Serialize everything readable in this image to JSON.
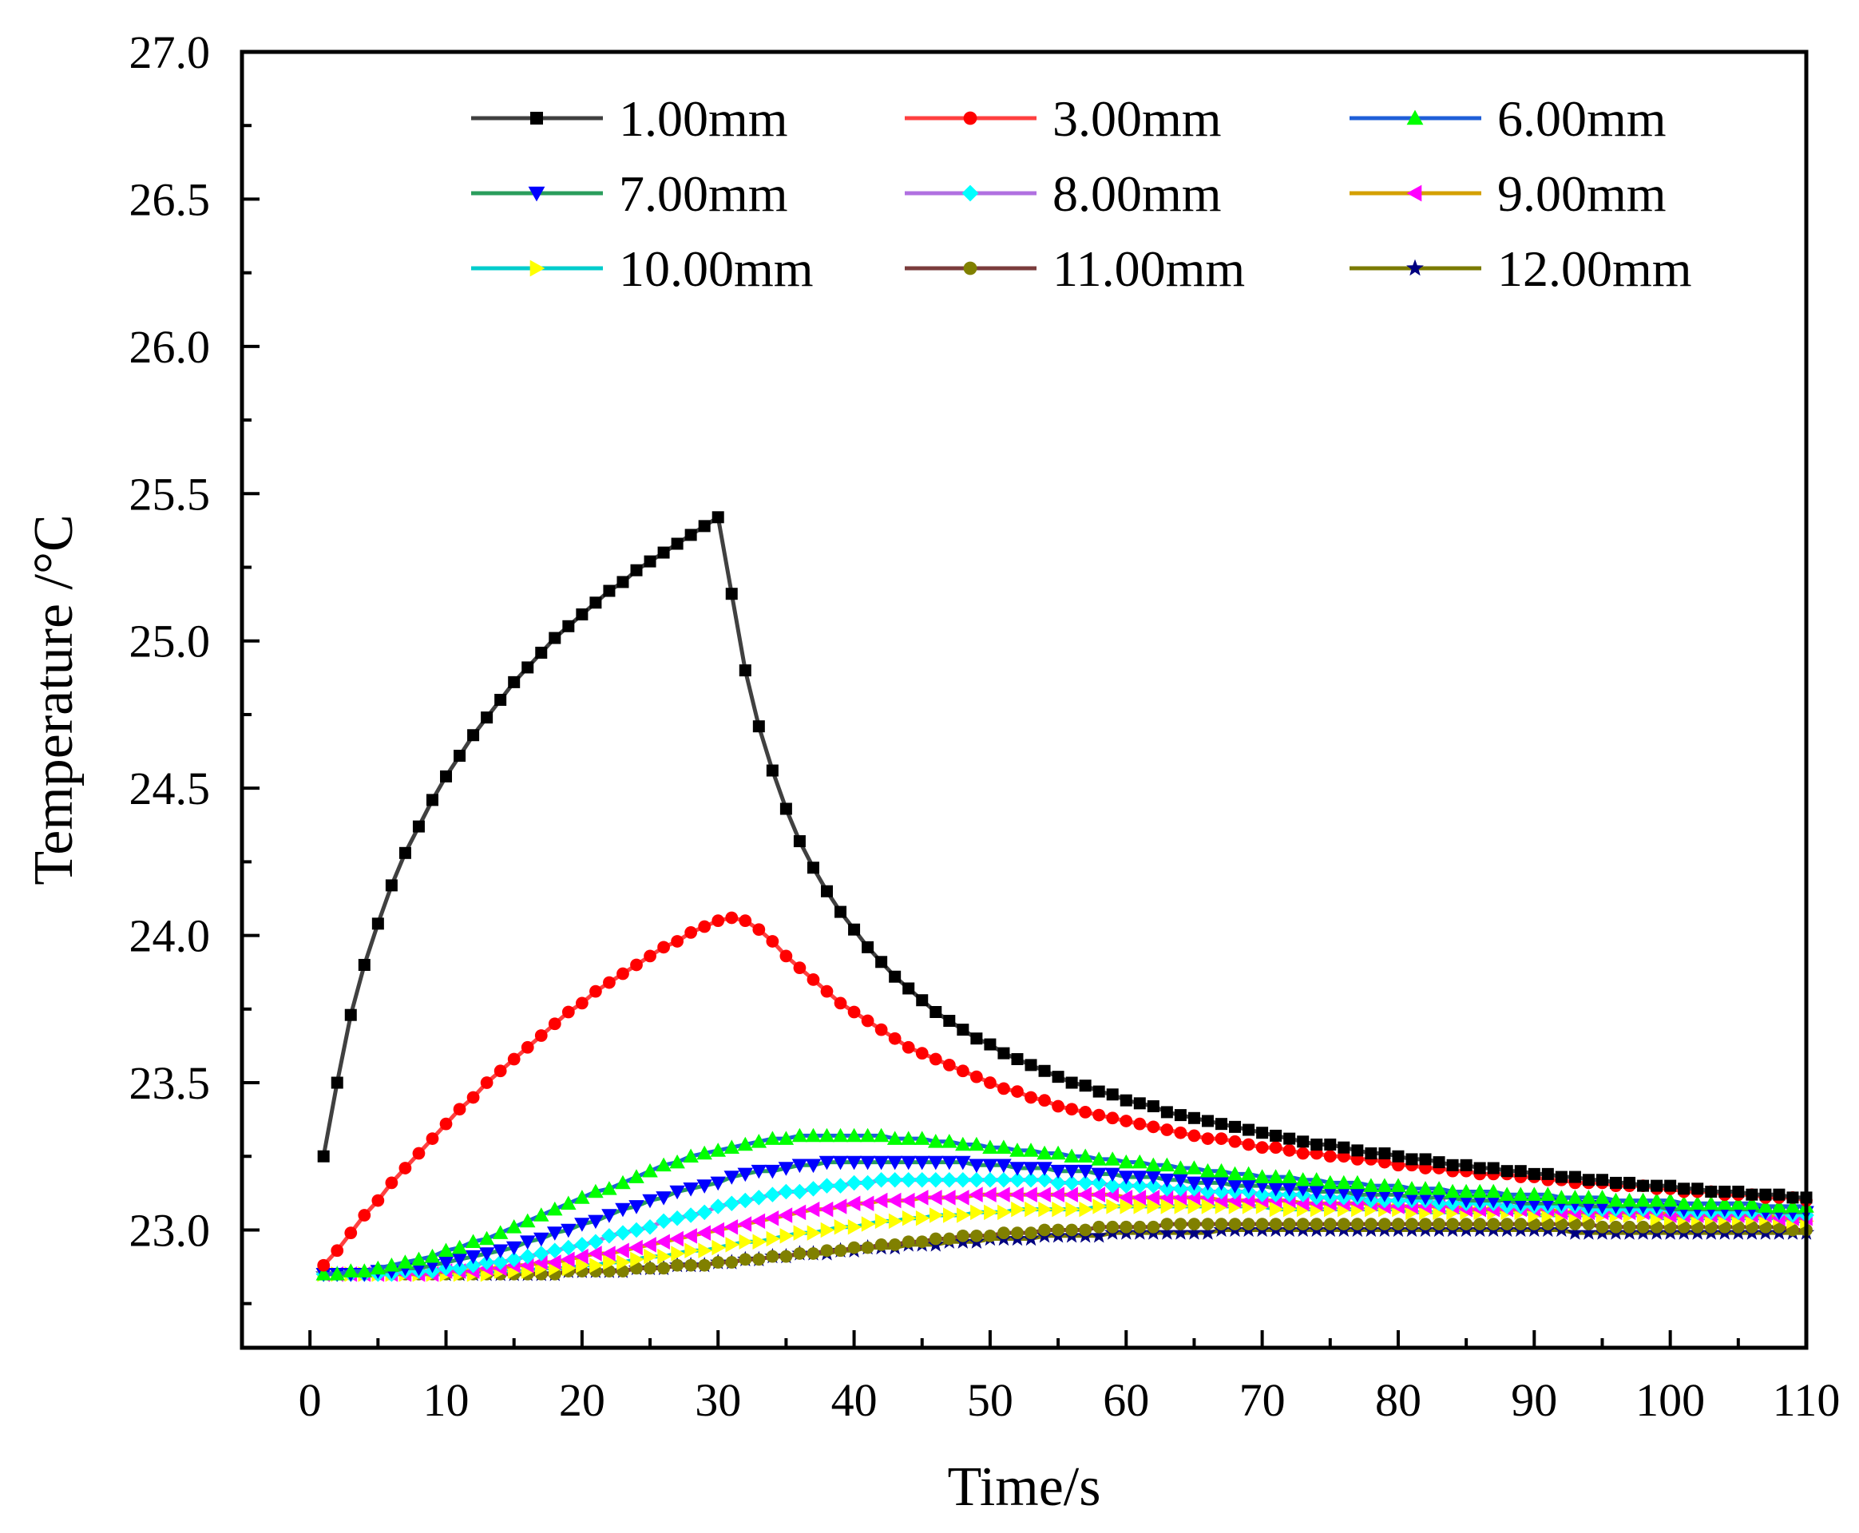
{
  "chart_data": {
    "type": "line",
    "title": "",
    "xlabel": "Time/s",
    "ylabel": "Temperature /°C",
    "xlim": [
      -5,
      110
    ],
    "ylim": [
      22.6,
      27.0
    ],
    "xticks": [
      "0",
      "10",
      "20",
      "30",
      "40",
      "50",
      "60",
      "70",
      "80",
      "90",
      "100",
      "110"
    ],
    "yticks": [
      "23.0",
      "23.5",
      "24.0",
      "24.5",
      "25.0",
      "25.5",
      "26.0",
      "26.5",
      "27.0"
    ],
    "x": [
      1,
      2,
      3,
      4,
      5,
      6,
      7,
      8,
      9,
      10,
      11,
      12,
      13,
      14,
      15,
      16,
      17,
      18,
      19,
      20,
      21,
      22,
      23,
      24,
      25,
      26,
      27,
      28,
      29,
      30,
      31,
      32,
      33,
      34,
      35,
      36,
      37,
      38,
      39,
      40,
      41,
      42,
      43,
      44,
      45,
      46,
      47,
      48,
      49,
      50,
      51,
      52,
      53,
      54,
      55,
      56,
      57,
      58,
      59,
      60,
      61,
      62,
      63,
      64,
      65,
      66,
      67,
      68,
      69,
      70,
      71,
      72,
      73,
      74,
      75,
      76,
      77,
      78,
      79,
      80,
      81,
      82,
      83,
      84,
      85,
      86,
      87,
      88,
      89,
      90,
      91,
      92,
      93,
      94,
      95,
      96,
      97,
      98,
      99,
      100,
      101,
      102,
      103,
      104,
      105,
      106,
      107,
      108,
      109,
      110
    ],
    "legend_position": "top",
    "series": [
      {
        "name": "1.00mm",
        "color": "#404040",
        "marker": "square",
        "marker_color": "#000000",
        "values": [
          23.25,
          23.5,
          23.73,
          23.9,
          24.04,
          24.17,
          24.28,
          24.37,
          24.46,
          24.54,
          24.61,
          24.68,
          24.74,
          24.8,
          24.86,
          24.91,
          24.96,
          25.01,
          25.05,
          25.09,
          25.13,
          25.17,
          25.2,
          25.24,
          25.27,
          25.3,
          25.33,
          25.36,
          25.39,
          25.42,
          25.16,
          24.9,
          24.71,
          24.56,
          24.43,
          24.32,
          24.23,
          24.15,
          24.08,
          24.02,
          23.96,
          23.91,
          23.86,
          23.82,
          23.78,
          23.74,
          23.71,
          23.68,
          23.65,
          23.63,
          23.6,
          23.58,
          23.56,
          23.54,
          23.52,
          23.5,
          23.49,
          23.47,
          23.46,
          23.44,
          23.43,
          23.42,
          23.4,
          23.39,
          23.38,
          23.37,
          23.36,
          23.35,
          23.34,
          23.33,
          23.32,
          23.31,
          23.3,
          23.29,
          23.29,
          23.28,
          23.27,
          23.26,
          23.26,
          23.25,
          23.24,
          23.24,
          23.23,
          23.22,
          23.22,
          23.21,
          23.21,
          23.2,
          23.2,
          23.19,
          23.19,
          23.18,
          23.18,
          23.17,
          23.17,
          23.16,
          23.16,
          23.15,
          23.15,
          23.15,
          23.14,
          23.14,
          23.13,
          23.13,
          23.13,
          23.12,
          23.12,
          23.12,
          23.11,
          23.11
        ]
      },
      {
        "name": "3.00mm",
        "color": "#ff4040",
        "marker": "circle",
        "marker_color": "#ff0000",
        "values": [
          22.88,
          22.93,
          22.99,
          23.05,
          23.1,
          23.16,
          23.21,
          23.26,
          23.31,
          23.36,
          23.41,
          23.45,
          23.5,
          23.54,
          23.58,
          23.62,
          23.66,
          23.7,
          23.74,
          23.77,
          23.81,
          23.84,
          23.87,
          23.9,
          23.93,
          23.96,
          23.98,
          24.01,
          24.03,
          24.05,
          24.06,
          24.05,
          24.02,
          23.98,
          23.93,
          23.89,
          23.85,
          23.81,
          23.77,
          23.74,
          23.71,
          23.68,
          23.65,
          23.62,
          23.6,
          23.58,
          23.56,
          23.54,
          23.52,
          23.5,
          23.48,
          23.47,
          23.45,
          23.44,
          23.42,
          23.41,
          23.4,
          23.39,
          23.38,
          23.37,
          23.36,
          23.35,
          23.34,
          23.33,
          23.32,
          23.31,
          23.31,
          23.3,
          23.29,
          23.28,
          23.28,
          23.27,
          23.26,
          23.26,
          23.25,
          23.25,
          23.24,
          23.24,
          23.23,
          23.22,
          23.22,
          23.21,
          23.21,
          23.2,
          23.2,
          23.19,
          23.19,
          23.19,
          23.18,
          23.18,
          23.17,
          23.17,
          23.16,
          23.16,
          23.16,
          23.15,
          23.15,
          23.15,
          23.14,
          23.14,
          23.13,
          23.13,
          23.13,
          23.12,
          23.12,
          23.12,
          23.11,
          23.11,
          23.11,
          23.1
        ]
      },
      {
        "name": "6.00mm",
        "color": "#1f5fd8",
        "marker": "triangle-up",
        "marker_color": "#00ff00",
        "values": [
          22.85,
          22.85,
          22.86,
          22.86,
          22.87,
          22.88,
          22.89,
          22.9,
          22.91,
          22.93,
          22.94,
          22.96,
          22.97,
          22.99,
          23.01,
          23.03,
          23.05,
          23.07,
          23.09,
          23.11,
          23.13,
          23.14,
          23.16,
          23.18,
          23.2,
          23.22,
          23.23,
          23.25,
          23.26,
          23.27,
          23.28,
          23.29,
          23.3,
          23.31,
          23.31,
          23.32,
          23.32,
          23.32,
          23.32,
          23.32,
          23.32,
          23.32,
          23.31,
          23.31,
          23.31,
          23.3,
          23.3,
          23.29,
          23.29,
          23.28,
          23.28,
          23.27,
          23.27,
          23.26,
          23.26,
          23.25,
          23.25,
          23.24,
          23.24,
          23.23,
          23.23,
          23.22,
          23.22,
          23.21,
          23.21,
          23.2,
          23.2,
          23.19,
          23.19,
          23.18,
          23.18,
          23.18,
          23.17,
          23.17,
          23.16,
          23.16,
          23.16,
          23.15,
          23.15,
          23.15,
          23.14,
          23.14,
          23.14,
          23.13,
          23.13,
          23.13,
          23.13,
          23.12,
          23.12,
          23.12,
          23.12,
          23.11,
          23.11,
          23.11,
          23.11,
          23.1,
          23.1,
          23.1,
          23.1,
          23.1,
          23.09,
          23.09,
          23.09,
          23.09,
          23.09,
          23.09,
          23.08,
          23.08,
          23.08,
          23.08
        ]
      },
      {
        "name": "7.00mm",
        "color": "#2a9d5c",
        "marker": "triangle-down",
        "marker_color": "#0000ff",
        "values": [
          22.85,
          22.85,
          22.85,
          22.85,
          22.86,
          22.86,
          22.87,
          22.87,
          22.88,
          22.89,
          22.9,
          22.91,
          22.92,
          22.93,
          22.94,
          22.96,
          22.97,
          22.99,
          23.0,
          23.02,
          23.03,
          23.05,
          23.07,
          23.08,
          23.1,
          23.11,
          23.13,
          23.14,
          23.15,
          23.16,
          23.18,
          23.19,
          23.2,
          23.2,
          23.21,
          23.22,
          23.22,
          23.23,
          23.23,
          23.23,
          23.23,
          23.23,
          23.23,
          23.23,
          23.23,
          23.23,
          23.23,
          23.23,
          23.22,
          23.22,
          23.22,
          23.21,
          23.21,
          23.21,
          23.2,
          23.2,
          23.2,
          23.19,
          23.19,
          23.18,
          23.18,
          23.18,
          23.17,
          23.17,
          23.16,
          23.16,
          23.16,
          23.15,
          23.15,
          23.15,
          23.14,
          23.14,
          23.14,
          23.13,
          23.13,
          23.13,
          23.12,
          23.12,
          23.12,
          23.12,
          23.11,
          23.11,
          23.11,
          23.11,
          23.1,
          23.1,
          23.1,
          23.1,
          23.09,
          23.09,
          23.09,
          23.09,
          23.09,
          23.08,
          23.08,
          23.08,
          23.08,
          23.08,
          23.08,
          23.07,
          23.07,
          23.07,
          23.07,
          23.07,
          23.07,
          23.07,
          23.06,
          23.06,
          23.06,
          23.06
        ]
      },
      {
        "name": "8.00mm",
        "color": "#b070e0",
        "marker": "diamond",
        "marker_color": "#00ffff",
        "values": [
          22.85,
          22.85,
          22.85,
          22.85,
          22.85,
          22.85,
          22.86,
          22.86,
          22.86,
          22.87,
          22.87,
          22.88,
          22.89,
          22.89,
          22.9,
          22.91,
          22.92,
          22.93,
          22.94,
          22.95,
          22.96,
          22.98,
          22.99,
          23.0,
          23.01,
          23.03,
          23.04,
          23.05,
          23.06,
          23.08,
          23.09,
          23.1,
          23.11,
          23.12,
          23.13,
          23.13,
          23.14,
          23.15,
          23.15,
          23.16,
          23.16,
          23.17,
          23.17,
          23.17,
          23.17,
          23.17,
          23.17,
          23.17,
          23.17,
          23.17,
          23.17,
          23.17,
          23.17,
          23.17,
          23.16,
          23.16,
          23.16,
          23.16,
          23.15,
          23.15,
          23.15,
          23.15,
          23.14,
          23.14,
          23.14,
          23.13,
          23.13,
          23.13,
          23.13,
          23.12,
          23.12,
          23.12,
          23.12,
          23.11,
          23.11,
          23.11,
          23.11,
          23.1,
          23.1,
          23.1,
          23.1,
          23.1,
          23.09,
          23.09,
          23.09,
          23.09,
          23.09,
          23.08,
          23.08,
          23.08,
          23.08,
          23.08,
          23.08,
          23.07,
          23.07,
          23.07,
          23.07,
          23.07,
          23.07,
          23.07,
          23.06,
          23.06,
          23.06,
          23.06,
          23.06,
          23.06,
          23.06,
          23.06,
          23.05,
          23.05
        ]
      },
      {
        "name": "9.00mm",
        "color": "#d4a000",
        "marker": "triangle-left",
        "marker_color": "#ff00ff",
        "values": [
          22.85,
          22.85,
          22.85,
          22.85,
          22.85,
          22.85,
          22.85,
          22.85,
          22.85,
          22.86,
          22.86,
          22.86,
          22.87,
          22.87,
          22.88,
          22.88,
          22.89,
          22.89,
          22.9,
          22.91,
          22.92,
          22.92,
          22.93,
          22.94,
          22.95,
          22.96,
          22.97,
          22.98,
          22.99,
          23.0,
          23.01,
          23.02,
          23.03,
          23.04,
          23.05,
          23.06,
          23.07,
          23.07,
          23.08,
          23.09,
          23.09,
          23.1,
          23.1,
          23.1,
          23.11,
          23.11,
          23.11,
          23.11,
          23.12,
          23.12,
          23.12,
          23.12,
          23.12,
          23.12,
          23.12,
          23.12,
          23.12,
          23.12,
          23.12,
          23.11,
          23.11,
          23.11,
          23.11,
          23.11,
          23.11,
          23.11,
          23.1,
          23.1,
          23.1,
          23.1,
          23.1,
          23.1,
          23.09,
          23.09,
          23.09,
          23.09,
          23.09,
          23.09,
          23.08,
          23.08,
          23.08,
          23.08,
          23.08,
          23.08,
          23.07,
          23.07,
          23.07,
          23.07,
          23.07,
          23.07,
          23.07,
          23.06,
          23.06,
          23.06,
          23.06,
          23.06,
          23.06,
          23.06,
          23.06,
          23.05,
          23.05,
          23.05,
          23.05,
          23.05,
          23.05,
          23.05,
          23.05,
          23.04,
          23.04,
          23.04
        ]
      },
      {
        "name": "10.00mm",
        "color": "#00cccc",
        "marker": "triangle-right",
        "marker_color": "#ffff00",
        "values": [
          22.85,
          22.85,
          22.85,
          22.85,
          22.85,
          22.85,
          22.85,
          22.85,
          22.85,
          22.85,
          22.85,
          22.85,
          22.85,
          22.86,
          22.86,
          22.86,
          22.87,
          22.87,
          22.87,
          22.88,
          22.88,
          22.89,
          22.89,
          22.9,
          22.91,
          22.91,
          22.92,
          22.93,
          22.93,
          22.94,
          22.95,
          22.96,
          22.96,
          22.97,
          22.98,
          22.99,
          22.99,
          23.0,
          23.01,
          23.01,
          23.02,
          23.03,
          23.03,
          23.04,
          23.04,
          23.05,
          23.05,
          23.05,
          23.06,
          23.06,
          23.06,
          23.07,
          23.07,
          23.07,
          23.07,
          23.07,
          23.07,
          23.08,
          23.08,
          23.08,
          23.08,
          23.08,
          23.08,
          23.08,
          23.08,
          23.08,
          23.08,
          23.08,
          23.08,
          23.08,
          23.07,
          23.07,
          23.07,
          23.07,
          23.07,
          23.07,
          23.07,
          23.07,
          23.07,
          23.07,
          23.06,
          23.06,
          23.06,
          23.06,
          23.06,
          23.06,
          23.06,
          23.06,
          23.06,
          23.05,
          23.05,
          23.05,
          23.05,
          23.05,
          23.05,
          23.05,
          23.05,
          23.05,
          23.04,
          23.04,
          23.04,
          23.04,
          23.04,
          23.04,
          23.04,
          23.04,
          23.04,
          23.04,
          23.03,
          23.03
        ]
      },
      {
        "name": "11.00mm",
        "color": "#7a3c3c",
        "marker": "circle",
        "marker_color": "#808000",
        "values": [
          22.85,
          22.85,
          22.85,
          22.85,
          22.85,
          22.85,
          22.85,
          22.85,
          22.85,
          22.85,
          22.85,
          22.85,
          22.85,
          22.85,
          22.85,
          22.85,
          22.85,
          22.85,
          22.86,
          22.86,
          22.86,
          22.86,
          22.86,
          22.87,
          22.87,
          22.87,
          22.88,
          22.88,
          22.88,
          22.89,
          22.89,
          22.9,
          22.9,
          22.91,
          22.91,
          22.92,
          22.92,
          22.93,
          22.93,
          22.94,
          22.94,
          22.95,
          22.95,
          22.96,
          22.96,
          22.97,
          22.97,
          22.98,
          22.98,
          22.98,
          22.99,
          22.99,
          22.99,
          23.0,
          23.0,
          23.0,
          23.0,
          23.01,
          23.01,
          23.01,
          23.01,
          23.01,
          23.02,
          23.02,
          23.02,
          23.02,
          23.02,
          23.02,
          23.02,
          23.02,
          23.02,
          23.02,
          23.02,
          23.02,
          23.02,
          23.02,
          23.02,
          23.02,
          23.02,
          23.02,
          23.02,
          23.02,
          23.02,
          23.02,
          23.02,
          23.02,
          23.02,
          23.02,
          23.02,
          23.02,
          23.02,
          23.02,
          23.02,
          23.02,
          23.01,
          23.01,
          23.01,
          23.01,
          23.01,
          23.01,
          23.01,
          23.01,
          23.01,
          23.01,
          23.01,
          23.01,
          23.01,
          23.01,
          23.0,
          23.0
        ]
      },
      {
        "name": "12.00mm",
        "color": "#7a7a00",
        "marker": "star",
        "marker_color": "#000080",
        "values": [
          22.85,
          22.85,
          22.85,
          22.85,
          22.85,
          22.85,
          22.85,
          22.85,
          22.85,
          22.85,
          22.85,
          22.85,
          22.85,
          22.85,
          22.85,
          22.85,
          22.85,
          22.85,
          22.86,
          22.86,
          22.86,
          22.86,
          22.86,
          22.87,
          22.87,
          22.87,
          22.88,
          22.88,
          22.88,
          22.89,
          22.89,
          22.9,
          22.9,
          22.91,
          22.91,
          22.92,
          22.92,
          22.92,
          22.93,
          22.93,
          22.94,
          22.94,
          22.94,
          22.95,
          22.95,
          22.95,
          22.96,
          22.96,
          22.96,
          22.97,
          22.97,
          22.97,
          22.97,
          22.98,
          22.98,
          22.98,
          22.98,
          22.98,
          22.99,
          22.99,
          22.99,
          22.99,
          22.99,
          22.99,
          22.99,
          22.99,
          23.0,
          23.0,
          23.0,
          23.0,
          23.0,
          23.0,
          23.0,
          23.0,
          23.0,
          23.0,
          23.0,
          23.0,
          23.0,
          23.0,
          23.0,
          23.0,
          23.0,
          23.0,
          23.0,
          23.0,
          23.0,
          23.0,
          23.0,
          23.0,
          23.0,
          23.0,
          22.99,
          22.99,
          22.99,
          22.99,
          22.99,
          22.99,
          22.99,
          22.99,
          22.99,
          22.99,
          22.99,
          22.99,
          22.99,
          22.99,
          22.99,
          22.99,
          22.99,
          22.99
        ]
      }
    ]
  }
}
